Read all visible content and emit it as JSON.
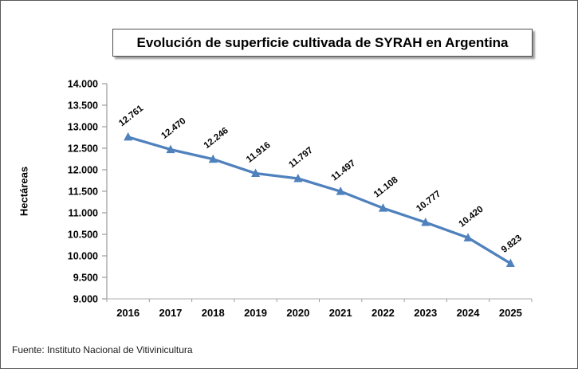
{
  "source": "Fuente: Instituto Nacional de Vitivinicultura",
  "chart_data": {
    "type": "line",
    "title": "Evolución de superficie cultivada de SYRAH en Argentina",
    "xlabel": "",
    "ylabel": "Hectáreas",
    "categories": [
      "2016",
      "2017",
      "2018",
      "2019",
      "2020",
      "2021",
      "2022",
      "2023",
      "2024",
      "2025"
    ],
    "values": [
      12761,
      12470,
      12246,
      11916,
      11797,
      11497,
      11108,
      10777,
      10420,
      9823
    ],
    "point_labels": [
      "12.761",
      "12.470",
      "12.246",
      "11.916",
      "11.797",
      "11.497",
      "11.108",
      "10.777",
      "10.420",
      "9.823"
    ],
    "y_tick_labels": [
      "14.000",
      "13.500",
      "13.000",
      "12.500",
      "12.000",
      "11.500",
      "11.000",
      "10.500",
      "10.000",
      "9.500",
      "9.000"
    ],
    "ylim": [
      9000,
      14000
    ],
    "y_step": 500,
    "grid": false,
    "legend": "none",
    "line_color": "#4F81BD",
    "marker": "triangle",
    "axis_color": "#9c9c9c",
    "x_axis_color": "#bfbfbf",
    "label_rotation_deg": -38
  }
}
